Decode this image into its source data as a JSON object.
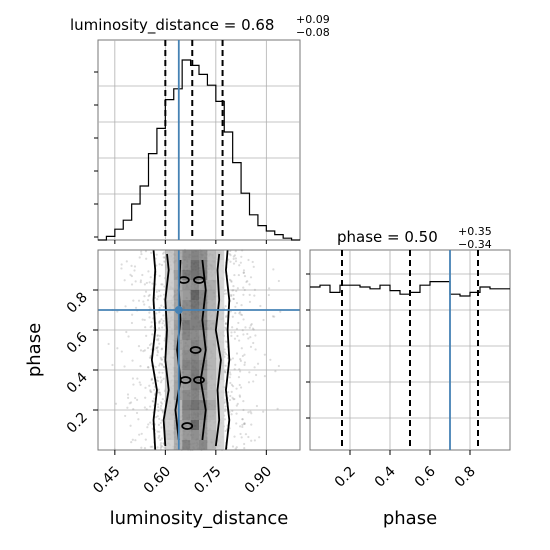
{
  "chart_data": [
    {
      "type": "histogram",
      "panel": "luminosity_distance-marginal",
      "title_param": "luminosity_distance",
      "title_value": "0.68",
      "title_plus": "+0.09",
      "title_minus": "−0.08",
      "bin_edges": [
        0.4,
        0.425,
        0.45,
        0.475,
        0.5,
        0.525,
        0.55,
        0.575,
        0.6,
        0.625,
        0.65,
        0.675,
        0.7,
        0.725,
        0.75,
        0.775,
        0.8,
        0.825,
        0.85,
        0.875,
        0.9,
        0.925,
        0.95,
        0.975,
        1.0
      ],
      "counts": [
        0.0,
        0.02,
        0.06,
        0.11,
        0.2,
        0.3,
        0.48,
        0.62,
        0.78,
        0.84,
        1.0,
        0.97,
        0.92,
        0.86,
        0.77,
        0.6,
        0.43,
        0.26,
        0.14,
        0.08,
        0.05,
        0.03,
        0.01,
        0.0
      ],
      "quantiles": [
        0.6,
        0.68,
        0.77
      ],
      "truth": 0.64,
      "xlim": [
        0.4,
        1.0
      ],
      "grid": true
    },
    {
      "type": "histogram",
      "panel": "phase-marginal",
      "title_param": "phase",
      "title_value": "0.50",
      "title_plus": "+0.35",
      "title_minus": "−0.34",
      "bin_edges": [
        0.0,
        0.05,
        0.1,
        0.15,
        0.2,
        0.25,
        0.3,
        0.35,
        0.4,
        0.45,
        0.5,
        0.55,
        0.6,
        0.65,
        0.7,
        0.75,
        0.8,
        0.85,
        0.9,
        0.95,
        1.0
      ],
      "counts": [
        0.85,
        0.86,
        0.82,
        0.86,
        0.86,
        0.85,
        0.84,
        0.86,
        0.83,
        0.81,
        0.82,
        0.86,
        0.88,
        0.88,
        0.81,
        0.8,
        0.82,
        0.85,
        0.84,
        0.84
      ],
      "quantiles": [
        0.16,
        0.5,
        0.84
      ],
      "truth": 0.7,
      "xlim": [
        0.0,
        1.0
      ],
      "xticks": [
        "0.2",
        "0.4",
        "0.6",
        "0.8"
      ],
      "xtick_values": [
        0.2,
        0.4,
        0.6,
        0.8
      ],
      "xlabel": "phase",
      "grid": true
    },
    {
      "type": "scatter",
      "panel": "joint-2d",
      "x_param": "luminosity_distance",
      "y_param": "phase",
      "xlim": [
        0.4,
        1.0
      ],
      "ylim": [
        0.0,
        1.0
      ],
      "xticks": [
        "0.45",
        "0.60",
        "0.75",
        "0.90"
      ],
      "xtick_values": [
        0.45,
        0.6,
        0.75,
        0.9
      ],
      "yticks": [
        "0.2",
        "0.4",
        "0.6",
        "0.8"
      ],
      "ytick_values": [
        0.2,
        0.4,
        0.6,
        0.8
      ],
      "xlabel": "luminosity_distance",
      "ylabel": "phase",
      "truth": [
        0.64,
        0.7
      ],
      "contours": [
        {
          "level": "outer",
          "left": [
            [
              0.57,
              0.0
            ],
            [
              0.565,
              0.15
            ],
            [
              0.575,
              0.3
            ],
            [
              0.56,
              0.45
            ],
            [
              0.57,
              0.6
            ],
            [
              0.565,
              0.75
            ],
            [
              0.57,
              0.9
            ],
            [
              0.565,
              1.0
            ]
          ],
          "right": [
            [
              0.78,
              0.0
            ],
            [
              0.79,
              0.15
            ],
            [
              0.78,
              0.3
            ],
            [
              0.79,
              0.45
            ],
            [
              0.785,
              0.6
            ],
            [
              0.79,
              0.75
            ],
            [
              0.78,
              0.9
            ],
            [
              0.785,
              1.0
            ]
          ]
        },
        {
          "level": "middle",
          "left": [
            [
              0.6,
              0.02
            ],
            [
              0.595,
              0.15
            ],
            [
              0.61,
              0.3
            ],
            [
              0.6,
              0.45
            ],
            [
              0.605,
              0.6
            ],
            [
              0.6,
              0.75
            ],
            [
              0.61,
              0.9
            ],
            [
              0.605,
              0.98
            ]
          ],
          "right": [
            [
              0.75,
              0.02
            ],
            [
              0.76,
              0.15
            ],
            [
              0.755,
              0.3
            ],
            [
              0.765,
              0.45
            ],
            [
              0.75,
              0.6
            ],
            [
              0.76,
              0.75
            ],
            [
              0.755,
              0.9
            ],
            [
              0.76,
              0.98
            ]
          ]
        },
        {
          "level": "inner",
          "left": [
            [
              0.64,
              0.05
            ],
            [
              0.63,
              0.2
            ],
            [
              0.645,
              0.35
            ],
            [
              0.635,
              0.5
            ],
            [
              0.645,
              0.65
            ],
            [
              0.64,
              0.8
            ],
            [
              0.645,
              0.95
            ]
          ],
          "right": [
            [
              0.71,
              0.05
            ],
            [
              0.72,
              0.2
            ],
            [
              0.705,
              0.35
            ],
            [
              0.72,
              0.5
            ],
            [
              0.71,
              0.65
            ],
            [
              0.72,
              0.8
            ],
            [
              0.71,
              0.95
            ]
          ]
        }
      ],
      "grid": true
    }
  ]
}
